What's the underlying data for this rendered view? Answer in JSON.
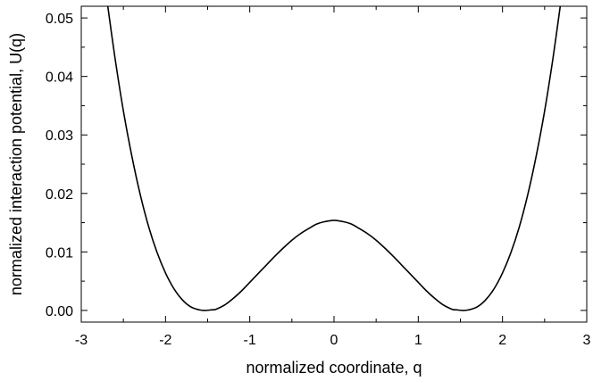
{
  "chart_data": {
    "type": "line",
    "title": "",
    "xlabel": "normalized coordinate, q",
    "ylabel": "normalized interaction potential, U(q)",
    "xlim": [
      -3,
      3
    ],
    "ylim": [
      -0.002,
      0.052
    ],
    "xticks": [
      -3,
      -2,
      -1,
      0,
      1,
      2,
      3
    ],
    "xtick_labels": [
      "-3",
      "-2",
      "-1",
      "0",
      "1",
      "2",
      "3"
    ],
    "yticks": [
      0.0,
      0.01,
      0.02,
      0.03,
      0.04,
      0.05
    ],
    "ytick_labels": [
      "0.00",
      "0.01",
      "0.02",
      "0.03",
      "0.04",
      "0.05"
    ],
    "grid": false,
    "legend": "none",
    "line_color": "#000000",
    "series": [
      {
        "x": [
          -2.69,
          -2.6,
          -2.5,
          -2.4,
          -2.3,
          -2.2,
          -2.1,
          -2.0,
          -1.9,
          -1.8,
          -1.7,
          -1.6,
          -1.53,
          -1.45,
          -1.4,
          -1.3,
          -1.2,
          -1.1,
          -1.0,
          -0.9,
          -0.8,
          -0.7,
          -0.6,
          -0.5,
          -0.4,
          -0.3,
          -0.2,
          -0.1,
          0.0,
          0.1,
          0.2,
          0.3,
          0.4,
          0.5,
          0.6,
          0.7,
          0.8,
          0.9,
          1.0,
          1.1,
          1.2,
          1.3,
          1.4,
          1.45,
          1.53,
          1.6,
          1.7,
          1.8,
          1.9,
          2.0,
          2.1,
          2.2,
          2.3,
          2.4,
          2.5,
          2.6,
          2.69
        ],
        "y": [
          0.0525,
          0.0432,
          0.0341,
          0.0264,
          0.0198,
          0.0143,
          0.0099,
          0.0064,
          0.0037,
          0.0018,
          0.0006,
          0.0001,
          0.0,
          0.0001,
          0.0002,
          0.0009,
          0.002,
          0.0033,
          0.0048,
          0.0063,
          0.0078,
          0.0093,
          0.0107,
          0.012,
          0.0131,
          0.014,
          0.0148,
          0.0152,
          0.0154,
          0.0152,
          0.0148,
          0.014,
          0.0131,
          0.012,
          0.0107,
          0.0093,
          0.0078,
          0.0063,
          0.0048,
          0.0033,
          0.002,
          0.0009,
          0.0002,
          0.0001,
          0.0,
          0.0001,
          0.0006,
          0.0018,
          0.0037,
          0.0064,
          0.0099,
          0.0143,
          0.0198,
          0.0264,
          0.0341,
          0.0432,
          0.0525
        ]
      }
    ]
  }
}
